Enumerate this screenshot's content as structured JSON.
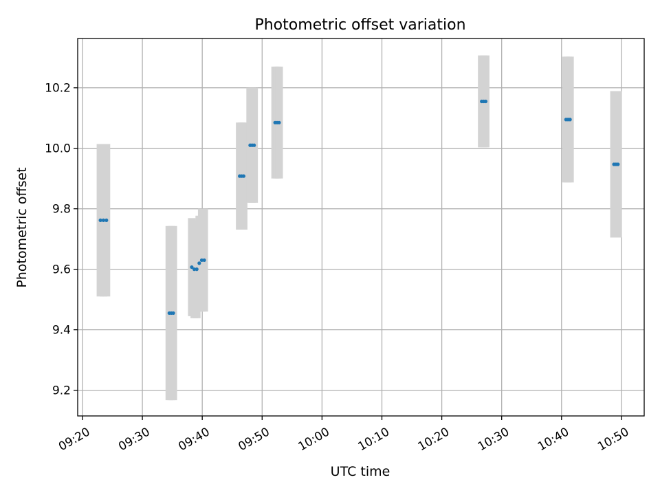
{
  "chart_data": {
    "type": "scatter",
    "title": "Photometric offset variation",
    "xlabel": "UTC time",
    "ylabel": "Photometric offset",
    "xlim": [
      "09:19:12",
      "10:53:48"
    ],
    "ylim": [
      9.115,
      10.363
    ],
    "x_ticks": [
      "09:20",
      "09:30",
      "09:40",
      "09:50",
      "10:00",
      "10:10",
      "10:20",
      "10:30",
      "10:40",
      "10:50"
    ],
    "y_ticks": [
      "9.2",
      "9.4",
      "9.6",
      "9.8",
      "10.0",
      "10.2"
    ],
    "grid": true,
    "colors": {
      "points": "#1f77b4",
      "error_bars": "#d3d3d3",
      "grid": "#b0b0b0"
    },
    "series": [
      {
        "points": [
          {
            "x": "09:23:00",
            "y": 9.762,
            "yerr": 0.252
          },
          {
            "x": "09:23:30",
            "y": 9.762,
            "yerr": 0.252
          },
          {
            "x": "09:24:00",
            "y": 9.762,
            "yerr": 0.252
          },
          {
            "x": "09:34:30",
            "y": 9.455,
            "yerr": 0.288
          },
          {
            "x": "09:34:50",
            "y": 9.455,
            "yerr": 0.288
          },
          {
            "x": "09:35:10",
            "y": 9.455,
            "yerr": 0.288
          },
          {
            "x": "09:38:15",
            "y": 9.607,
            "yerr": 0.162
          },
          {
            "x": "09:38:40",
            "y": 9.6,
            "yerr": 0.162
          },
          {
            "x": "09:39:05",
            "y": 9.6,
            "yerr": 0.162
          },
          {
            "x": "09:39:30",
            "y": 9.62,
            "yerr": 0.157
          },
          {
            "x": "09:39:55",
            "y": 9.63,
            "yerr": 0.17
          },
          {
            "x": "09:40:20",
            "y": 9.63,
            "yerr": 0.17
          },
          {
            "x": "09:46:15",
            "y": 9.908,
            "yerr": 0.177
          },
          {
            "x": "09:46:35",
            "y": 9.908,
            "yerr": 0.177
          },
          {
            "x": "09:46:55",
            "y": 9.908,
            "yerr": 0.177
          },
          {
            "x": "09:48:00",
            "y": 10.01,
            "yerr": 0.19
          },
          {
            "x": "09:48:20",
            "y": 10.01,
            "yerr": 0.19
          },
          {
            "x": "09:48:40",
            "y": 10.01,
            "yerr": 0.19
          },
          {
            "x": "09:52:10",
            "y": 10.085,
            "yerr": 0.185
          },
          {
            "x": "09:52:30",
            "y": 10.085,
            "yerr": 0.185
          },
          {
            "x": "09:52:50",
            "y": 10.085,
            "yerr": 0.185
          },
          {
            "x": "10:26:40",
            "y": 10.155,
            "yerr": 0.152
          },
          {
            "x": "10:27:00",
            "y": 10.155,
            "yerr": 0.152
          },
          {
            "x": "10:27:20",
            "y": 10.155,
            "yerr": 0.152
          },
          {
            "x": "10:40:45",
            "y": 10.095,
            "yerr": 0.208
          },
          {
            "x": "10:41:05",
            "y": 10.095,
            "yerr": 0.208
          },
          {
            "x": "10:41:25",
            "y": 10.095,
            "yerr": 0.208
          },
          {
            "x": "10:48:45",
            "y": 9.947,
            "yerr": 0.242
          },
          {
            "x": "10:49:05",
            "y": 9.947,
            "yerr": 0.242
          },
          {
            "x": "10:49:25",
            "y": 9.947,
            "yerr": 0.242
          }
        ]
      }
    ]
  }
}
